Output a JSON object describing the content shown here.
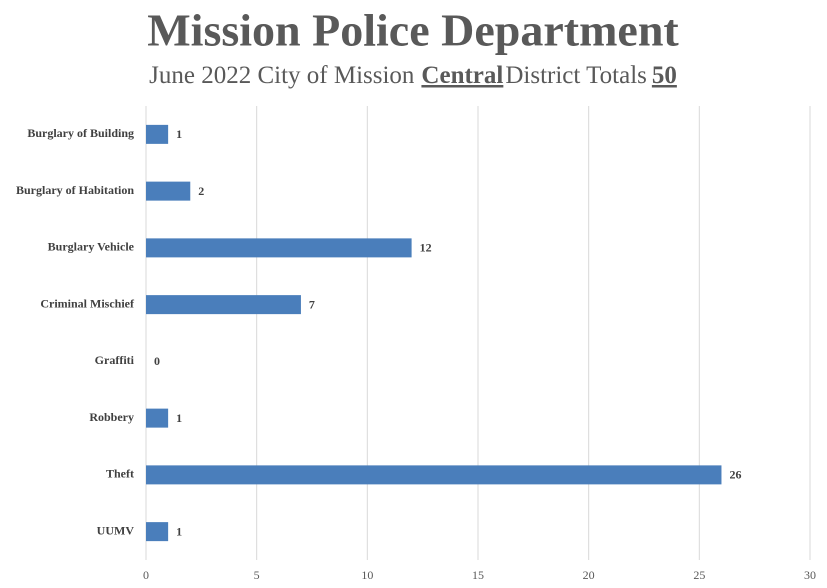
{
  "chart_data": {
    "type": "bar",
    "orientation": "horizontal",
    "title": "Mission Police Department",
    "subtitle": [
      "June 2022 City of Mission",
      "Central",
      "District Totals",
      "50"
    ],
    "categories": [
      "Burglary of Building",
      "Burglary of Habitation",
      "Burglary Vehicle",
      "Criminal Mischief",
      "Graffiti",
      "Robbery",
      "Theft",
      "UUMV"
    ],
    "values": [
      1,
      2,
      12,
      7,
      0,
      1,
      26,
      1
    ],
    "color": "#4a7ebb",
    "xlim": [
      0,
      30
    ],
    "xticks": [
      0,
      5,
      10,
      15,
      20,
      25,
      30
    ],
    "grid": true
  }
}
